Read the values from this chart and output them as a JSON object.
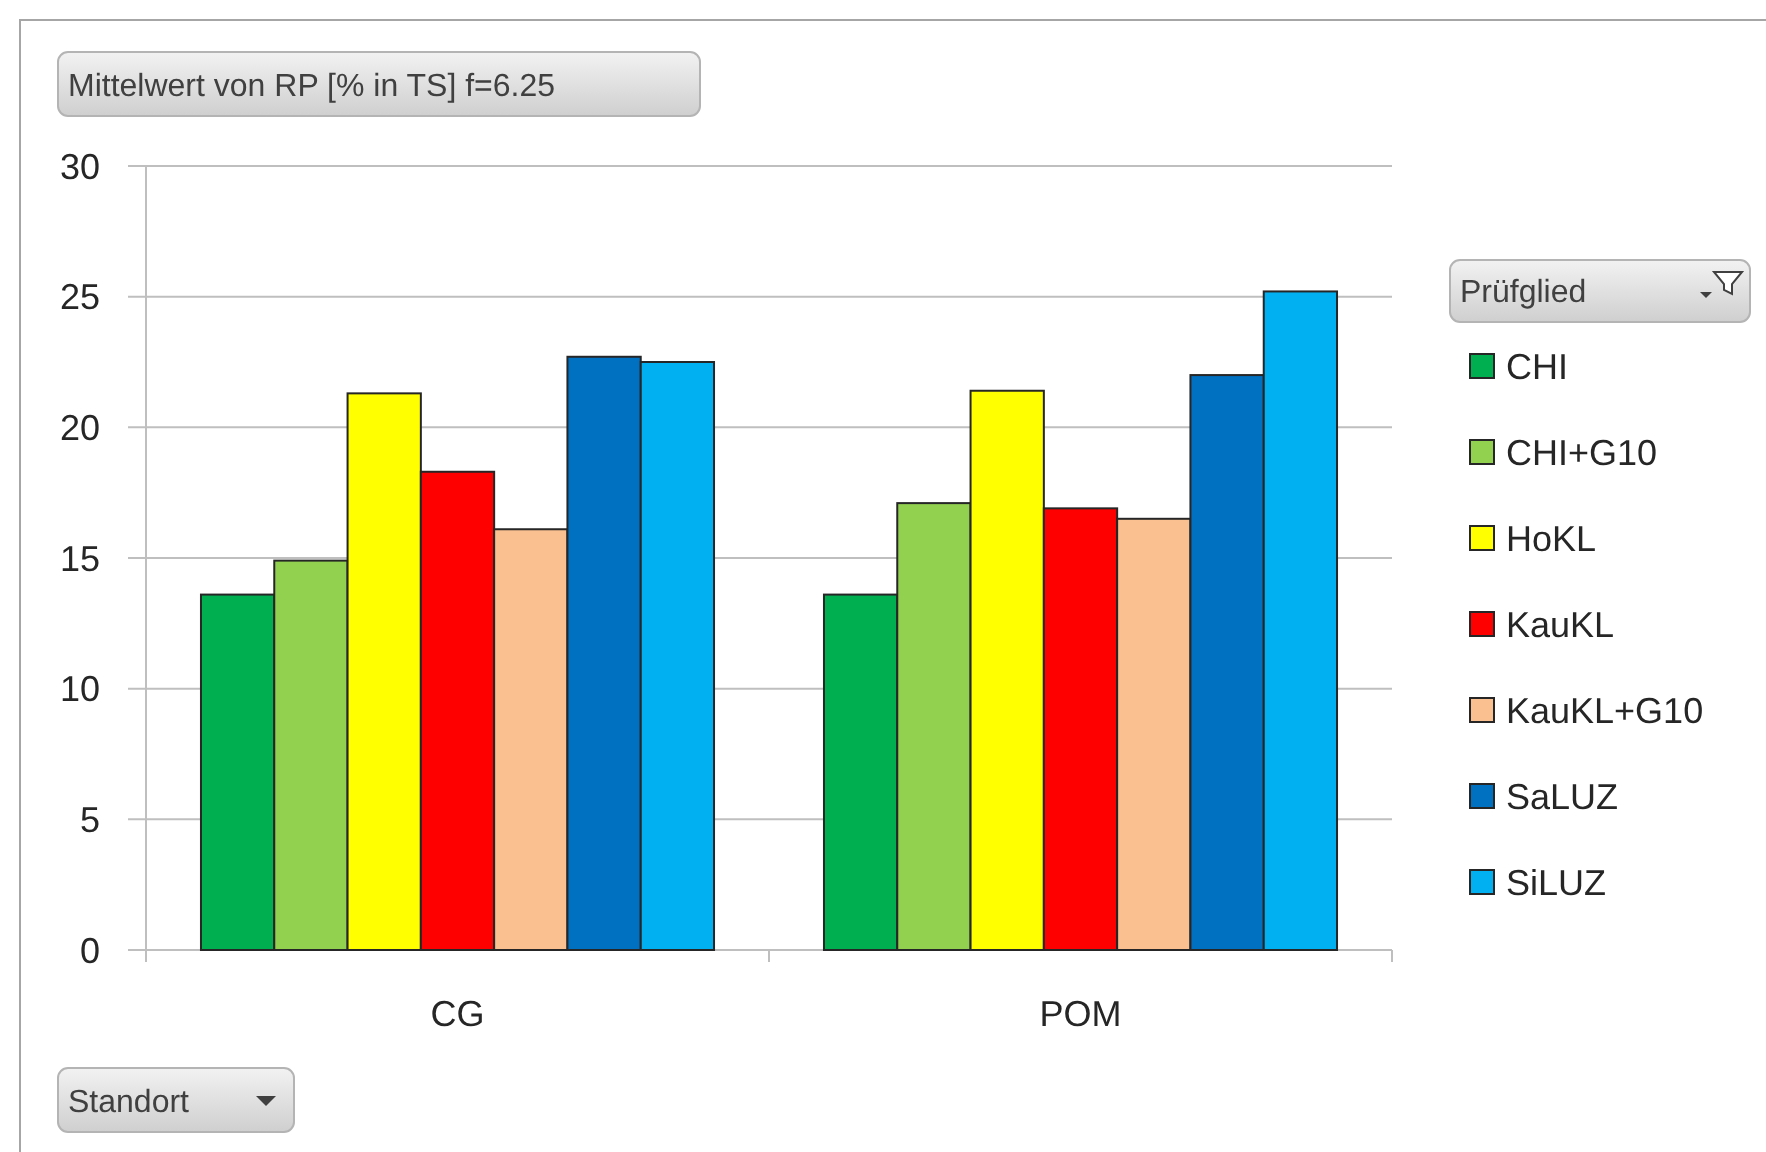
{
  "chart_data": {
    "type": "bar",
    "title": "Mittelwert von RP [% in TS] f=6.25",
    "xlabel": "Standort",
    "legend_title": "Prüfglied",
    "categories": [
      "CG",
      "POM"
    ],
    "series": [
      {
        "name": "CHI",
        "color": "#00b050",
        "values": [
          13.6,
          13.6
        ]
      },
      {
        "name": "CHI+G10",
        "color": "#92d050",
        "values": [
          14.9,
          17.1
        ]
      },
      {
        "name": "HoKL",
        "color": "#ffff00",
        "values": [
          21.3,
          21.4
        ]
      },
      {
        "name": "KauKL",
        "color": "#ff0000",
        "values": [
          18.3,
          16.9
        ]
      },
      {
        "name": "KauKL+G10",
        "color": "#fac090",
        "values": [
          16.1,
          16.5
        ]
      },
      {
        "name": "SaLUZ",
        "color": "#0070c0",
        "values": [
          22.7,
          22.0
        ]
      },
      {
        "name": "SiLUZ",
        "color": "#00b0f0",
        "values": [
          22.5,
          25.2
        ]
      }
    ],
    "ylim": [
      0,
      30
    ],
    "yticks": [
      0,
      5,
      10,
      15,
      20,
      25,
      30
    ],
    "grid": "y",
    "legend": "right"
  }
}
